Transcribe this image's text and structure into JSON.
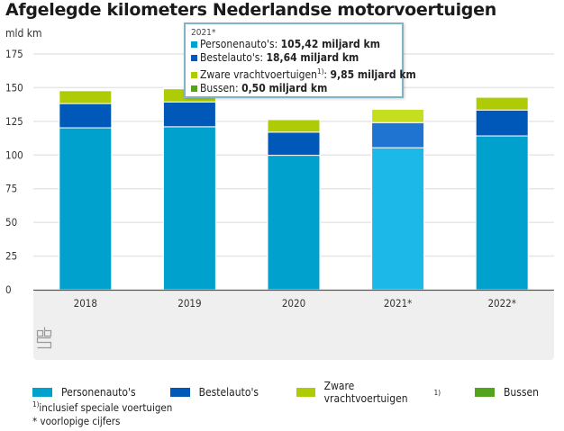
{
  "header": {
    "title": "Afgelegde kilometers Nederlandse motorvoertuigen",
    "unit": "mld km"
  },
  "tooltip": {
    "title": "2021*",
    "rows": [
      {
        "label": "Personenauto's: ",
        "value": "105,42 miljard km",
        "color": "#00a1cd"
      },
      {
        "label": "Bestelauto's: ",
        "value": "18,64 miljard km",
        "color": "#0058b8"
      },
      {
        "label": "Zware vrachtvoertuigen",
        "sup": "1)",
        "suffix": ": ",
        "value": "9,85 miljard km",
        "color": "#afcb05"
      },
      {
        "label": "Bussen: ",
        "value": "0,50 miljard km",
        "color": "#53a31d"
      }
    ]
  },
  "legend": [
    {
      "label": "Personenauto's",
      "color": "#00a1cd"
    },
    {
      "label": "Bestelauto's",
      "color": "#0058b8"
    },
    {
      "label": "Zware vrachtvoertuigen",
      "sup": "1)",
      "color": "#afcb05"
    },
    {
      "label": "Bussen",
      "color": "#53a31d"
    }
  ],
  "notes": {
    "footnote_sup": "1)",
    "footnote": "inclusief speciale voertuigen",
    "asterisk": "* voorlopige cijfers"
  },
  "chart_data": {
    "type": "bar",
    "stacked": true,
    "title": "Afgelegde kilometers Nederlandse motorvoertuigen",
    "xlabel": "",
    "ylabel": "mld km",
    "ylim": [
      0,
      175
    ],
    "yticks": [
      0,
      25,
      50,
      75,
      100,
      125,
      150,
      175
    ],
    "grid": true,
    "legend_position": "bottom",
    "categories": [
      "2018",
      "2019",
      "2020",
      "2021*",
      "2022*"
    ],
    "highlighted_category": "2021*",
    "series": [
      {
        "name": "Personenauto's",
        "color": "#00a1cd",
        "highlight_color": "#1bb8e8",
        "values": [
          120.2,
          121.0,
          99.8,
          105.42,
          114.2
        ]
      },
      {
        "name": "Bestelauto's",
        "color": "#0058b8",
        "highlight_color": "#1f73d1",
        "values": [
          18.0,
          18.4,
          17.2,
          18.64,
          19.2
        ]
      },
      {
        "name": "Zware vrachtvoertuigen",
        "color": "#afcb05",
        "highlight_color": "#c5df1e",
        "values": [
          9.6,
          9.8,
          9.3,
          9.85,
          9.5
        ]
      },
      {
        "name": "Bussen",
        "color": "#53a31d",
        "highlight_color": "#5fb524",
        "values": [
          0.6,
          0.6,
          0.4,
          0.5,
          0.5
        ]
      }
    ]
  }
}
